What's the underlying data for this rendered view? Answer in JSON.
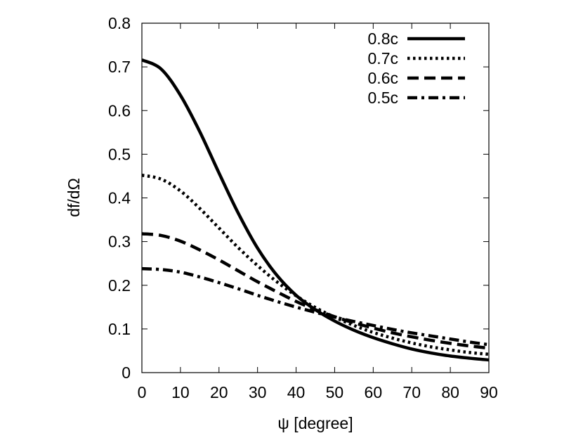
{
  "chart_data": {
    "type": "line",
    "title": "",
    "xlabel": "ψ [degree]",
    "ylabel": "df/dΩ",
    "xlim": [
      0,
      90
    ],
    "ylim": [
      0,
      0.8
    ],
    "xticks": [
      "0",
      "10",
      "20",
      "30",
      "40",
      "50",
      "60",
      "70",
      "80",
      "90"
    ],
    "yticks": [
      "0",
      "0.1",
      "0.2",
      "0.3",
      "0.4",
      "0.5",
      "0.6",
      "0.7",
      "0.8"
    ],
    "grid": false,
    "legend_position": "top-right",
    "x": [
      0,
      5,
      10,
      15,
      20,
      25,
      30,
      35,
      40,
      45,
      50,
      55,
      60,
      65,
      70,
      75,
      80,
      85,
      90
    ],
    "series": [
      {
        "name": "0.8c",
        "style": "solid",
        "values": [
          0.716,
          0.695,
          0.635,
          0.552,
          0.457,
          0.365,
          0.285,
          0.223,
          0.177,
          0.144,
          0.118,
          0.097,
          0.08,
          0.066,
          0.054,
          0.045,
          0.038,
          0.033,
          0.029
        ]
      },
      {
        "name": "0.7c",
        "style": "dotted",
        "values": [
          0.452,
          0.443,
          0.416,
          0.376,
          0.331,
          0.286,
          0.245,
          0.208,
          0.176,
          0.149,
          0.127,
          0.108,
          0.092,
          0.079,
          0.068,
          0.059,
          0.052,
          0.046,
          0.042
        ]
      },
      {
        "name": "0.6c",
        "style": "dashed",
        "values": [
          0.318,
          0.314,
          0.301,
          0.281,
          0.258,
          0.233,
          0.208,
          0.185,
          0.163,
          0.144,
          0.128,
          0.114,
          0.102,
          0.091,
          0.082,
          0.074,
          0.067,
          0.061,
          0.056
        ]
      },
      {
        "name": "0.5c",
        "style": "dashdot",
        "values": [
          0.238,
          0.236,
          0.23,
          0.219,
          0.206,
          0.192,
          0.177,
          0.163,
          0.15,
          0.138,
          0.127,
          0.117,
          0.108,
          0.099,
          0.091,
          0.084,
          0.077,
          0.07,
          0.064
        ]
      }
    ]
  }
}
